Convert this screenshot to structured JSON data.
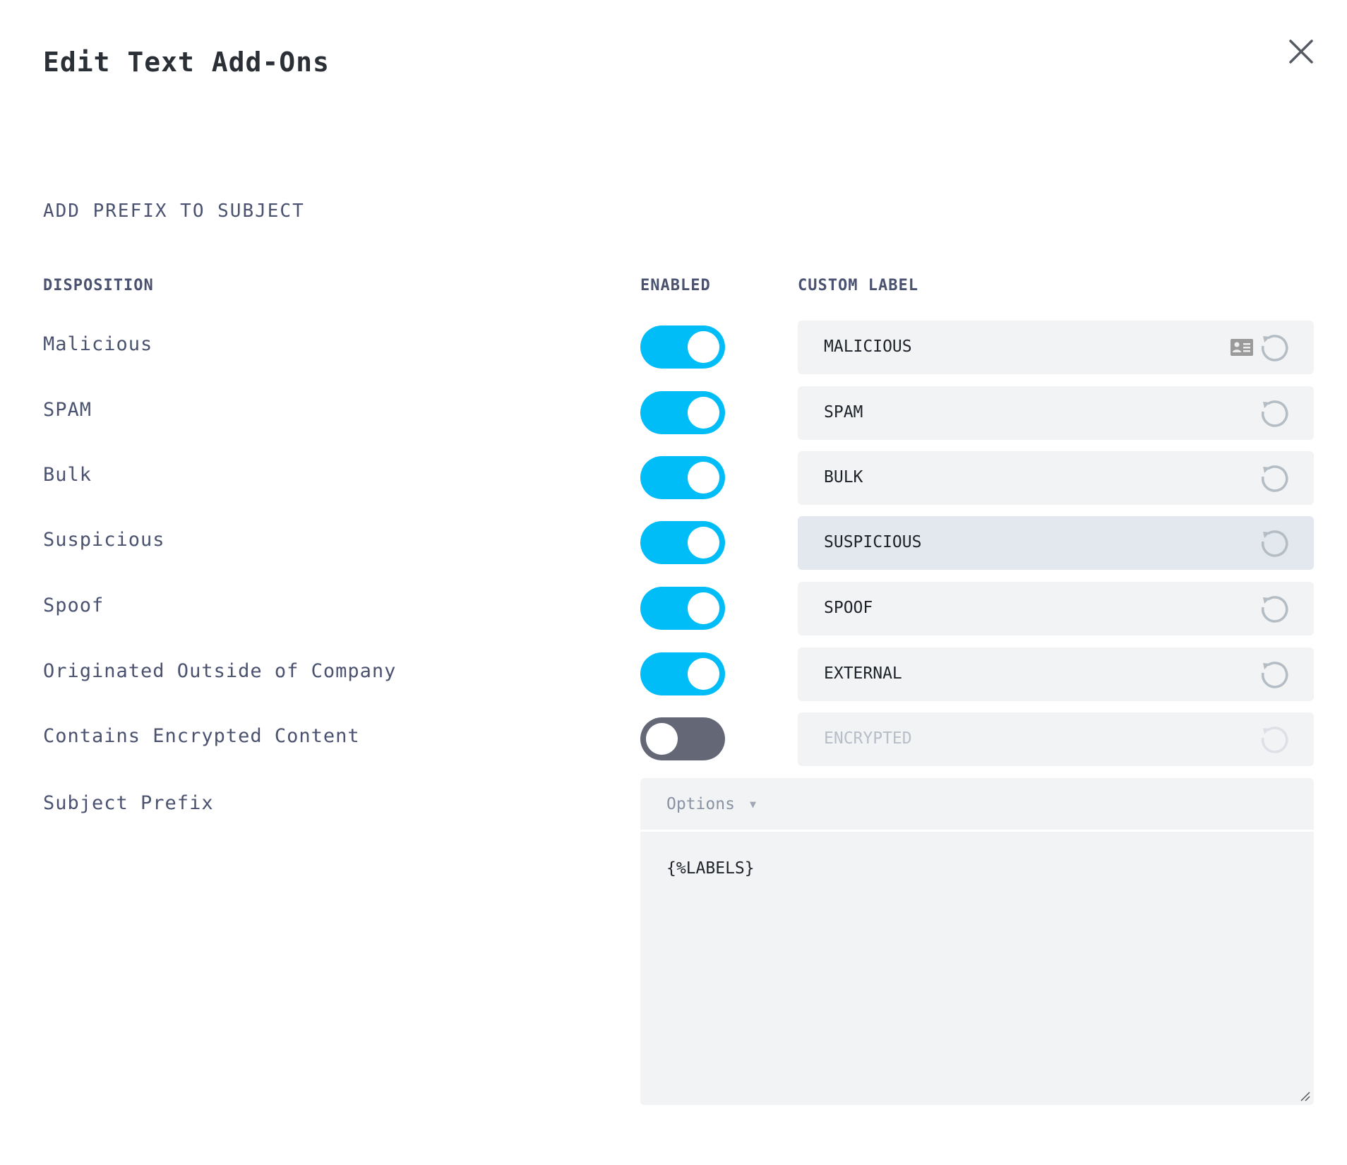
{
  "dialog": {
    "title": "Edit Text Add-Ons",
    "close_icon": "close-icon"
  },
  "section_title": "ADD PREFIX TO SUBJECT",
  "columns": {
    "disposition": "DISPOSITION",
    "enabled": "ENABLED",
    "custom_label": "CUSTOM LABEL"
  },
  "colors": {
    "toggle_on": "#00bdf7",
    "toggle_off": "#646876",
    "field_bg": "#f1f3f5"
  },
  "rows": [
    {
      "disposition": "Malicious",
      "enabled": true,
      "label": "MALICIOUS"
    },
    {
      "disposition": "SPAM",
      "enabled": true,
      "label": "SPAM"
    },
    {
      "disposition": "Bulk",
      "enabled": true,
      "label": "BULK"
    },
    {
      "disposition": "Suspicious",
      "enabled": true,
      "label": "SUSPICIOUS"
    },
    {
      "disposition": "Spoof",
      "enabled": true,
      "label": "SPOOF"
    },
    {
      "disposition": "Originated Outside of Company",
      "enabled": true,
      "label": "EXTERNAL"
    },
    {
      "disposition": "Contains Encrypted Content",
      "enabled": false,
      "label": "ENCRYPTED"
    }
  ],
  "subject_prefix": {
    "label": "Subject Prefix",
    "options_label": "Options",
    "value": "{%LABELS}"
  }
}
